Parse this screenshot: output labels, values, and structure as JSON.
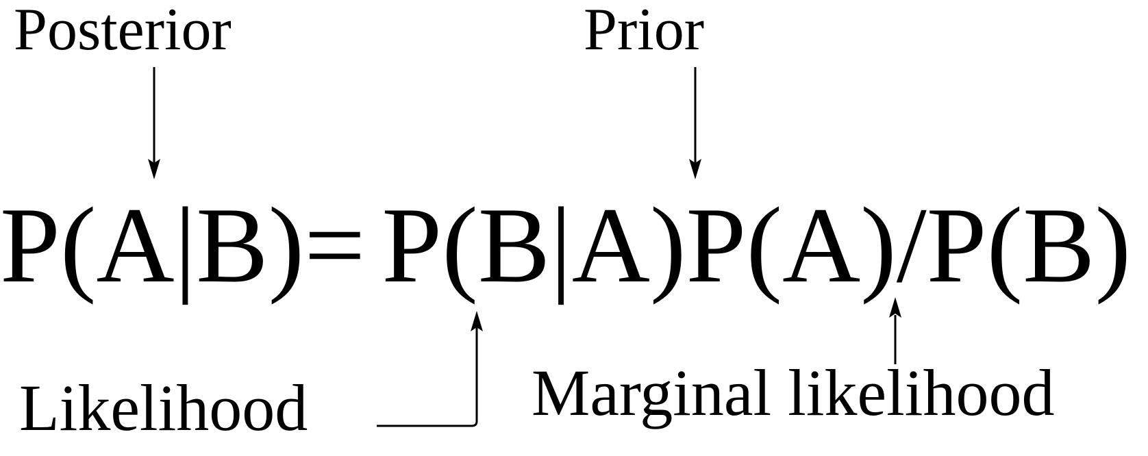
{
  "labels": {
    "posterior": "Posterior",
    "prior": "Prior",
    "likelihood": "Likelihood",
    "marginal_likelihood": "Marginal likelihood"
  },
  "formula": {
    "lhs": "P(A|B)",
    "equals": "=",
    "rhs": "P(B|A)P(A)/P(B)"
  },
  "colors": {
    "ink": "#000000",
    "background": "#ffffff"
  }
}
